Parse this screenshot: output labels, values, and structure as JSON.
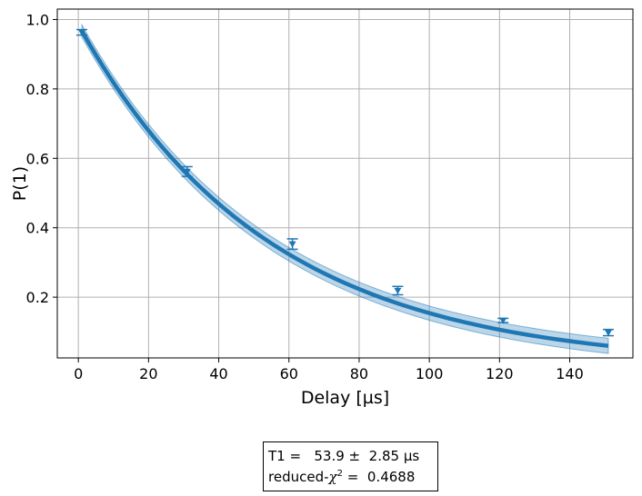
{
  "chart_data": {
    "type": "scatter",
    "xlabel": "Delay [µs]",
    "ylabel": "P(1)",
    "xlim": [
      -6,
      158
    ],
    "ylim": [
      0.025,
      1.03
    ],
    "xticks": [
      0,
      20,
      40,
      60,
      80,
      100,
      120,
      140
    ],
    "yticks": [
      0.2,
      0.4,
      0.6,
      0.8,
      1.0
    ],
    "xtick_labels": [
      "0",
      "20",
      "40",
      "60",
      "80",
      "100",
      "120",
      "140"
    ],
    "ytick_labels": [
      "0.2",
      "0.4",
      "0.6",
      "0.8",
      "1.0"
    ],
    "grid": true,
    "color": "#1f77b4",
    "points": [
      {
        "x": 1,
        "y": 0.963,
        "err": 0.008
      },
      {
        "x": 31,
        "y": 0.562,
        "err": 0.014
      },
      {
        "x": 61,
        "y": 0.353,
        "err": 0.015
      },
      {
        "x": 91,
        "y": 0.219,
        "err": 0.012
      },
      {
        "x": 121,
        "y": 0.133,
        "err": 0.006
      },
      {
        "x": 151,
        "y": 0.098,
        "err": 0.009
      }
    ],
    "fit": {
      "model": "A*exp(-x/T1)+B",
      "A": 0.985,
      "T1": 53.9,
      "B": 0.0,
      "band_start": 0.018,
      "band_end": 0.022,
      "x_range": [
        1,
        151
      ]
    }
  },
  "result_box": {
    "t1_label": "T1 =",
    "t1_value": "53.9",
    "t1_pm": "±",
    "t1_err": "2.85",
    "t1_unit": "µs",
    "chi_prefix": "reduced-",
    "chi_symbol": "χ",
    "chi_power": "2",
    "chi_eq": "=",
    "chi_value": "0.4688"
  }
}
